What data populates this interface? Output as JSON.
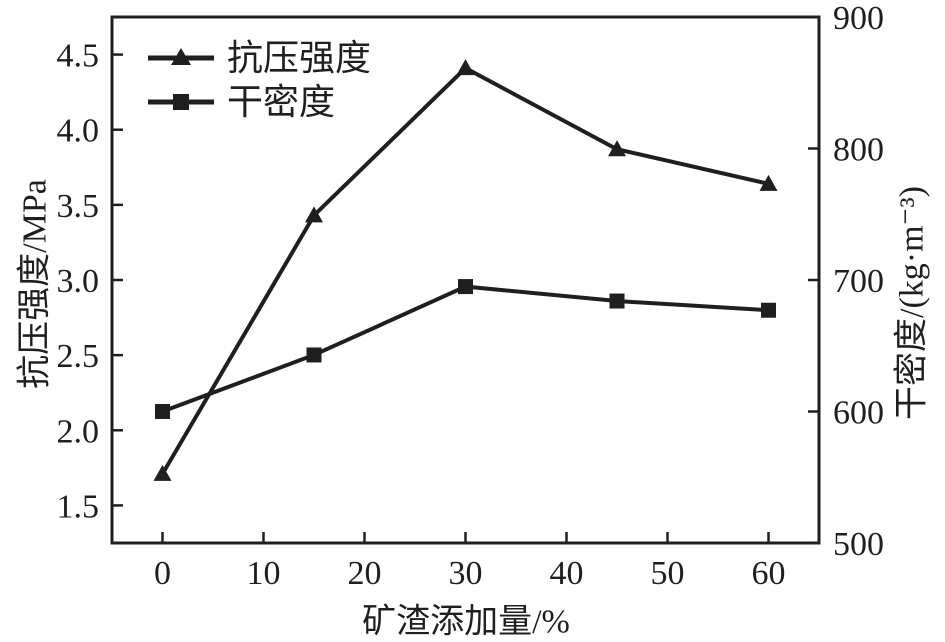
{
  "chart_data": {
    "type": "line",
    "title": "",
    "xlabel": "矿渣添加量/%",
    "ylabel_left": "抗压强度/MPa",
    "ylabel_right": "干密度/(kg·m⁻³)",
    "x": [
      0,
      15,
      30,
      45,
      60
    ],
    "series": [
      {
        "id": "compressive-strength",
        "name": "抗压强度",
        "axis": "left",
        "marker": "triangle",
        "values": [
          1.71,
          3.43,
          4.41,
          3.87,
          3.64
        ]
      },
      {
        "id": "dry-density",
        "name": "干密度",
        "axis": "right",
        "marker": "square",
        "values": [
          600,
          643,
          695,
          684,
          677
        ]
      }
    ],
    "x_ticks": [
      "0",
      "10",
      "20",
      "30",
      "40",
      "50",
      "60"
    ],
    "y_ticks_left": [
      "1.5",
      "2.0",
      "2.5",
      "3.0",
      "3.5",
      "4.0",
      "4.5"
    ],
    "y_ticks_right": [
      "500",
      "600",
      "700",
      "800",
      "900"
    ],
    "xlim": [
      -5,
      65
    ],
    "ylim_left": [
      1.25,
      4.75
    ],
    "ylim_right": [
      500,
      900
    ],
    "grid": false,
    "legend_position": "top-left",
    "line_color": "#1f1f1f",
    "background_color": "#ffffff"
  }
}
